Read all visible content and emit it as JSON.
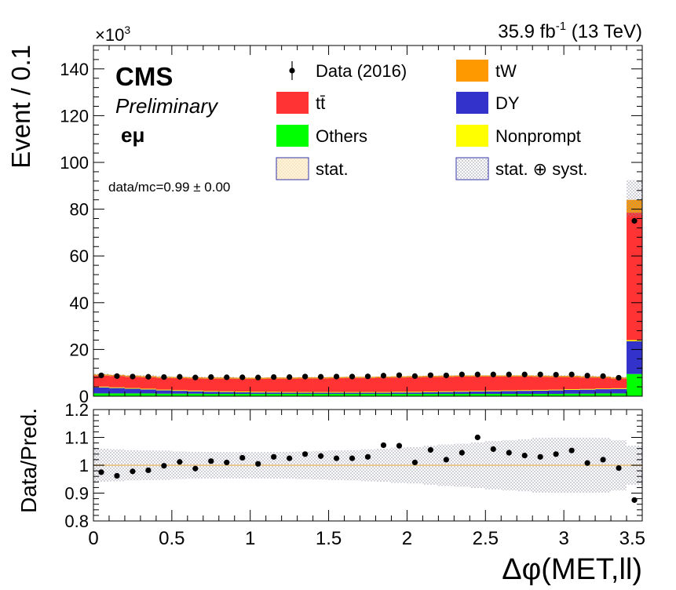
{
  "header": {
    "lumi_value": "35.9 fb",
    "lumi_exp": "-1",
    "lumi_energy": "(13 TeV)",
    "y_multiplier_base": "×10",
    "y_multiplier_exp": "3"
  },
  "labels": {
    "cms": "CMS",
    "preliminary": "Preliminary",
    "channel": "eμ",
    "ratio_text": "data/mc=0.99 ± 0.00"
  },
  "colors": {
    "ttbar": "#ff3333",
    "tW": "#ff9900",
    "DY": "#3333cc",
    "Others": "#00ff00",
    "Nonprompt": "#ffff00",
    "data": "#000000",
    "unc_band": "#9999aa"
  },
  "legend": [
    {
      "label": "Data (2016)",
      "kind": "data"
    },
    {
      "label": "tW",
      "kind": "fill",
      "color_key": "tW"
    },
    {
      "label": "tt̄",
      "kind": "fill",
      "color_key": "ttbar"
    },
    {
      "label": "DY",
      "kind": "fill",
      "color_key": "DY"
    },
    {
      "label": "Others",
      "kind": "fill",
      "color_key": "Others"
    },
    {
      "label": "Nonprompt",
      "kind": "fill",
      "color_key": "Nonprompt"
    },
    {
      "label": "stat.",
      "kind": "stat"
    },
    {
      "label": "stat. ⊕ syst.",
      "kind": "syst"
    }
  ],
  "chart_data": [
    {
      "type": "bar",
      "stacked": true,
      "ylabel": "Event / 0.1",
      "y_scale_note": "×10^3",
      "ylim": [
        0,
        150
      ],
      "xlim": [
        0,
        3.5
      ],
      "yticks": [
        0,
        20,
        40,
        60,
        80,
        100,
        120,
        140
      ],
      "bin_width": 0.1,
      "x_centers": [
        0.05,
        0.15,
        0.25,
        0.35,
        0.45,
        0.55,
        0.65,
        0.75,
        0.85,
        0.95,
        1.05,
        1.15,
        1.25,
        1.35,
        1.45,
        1.55,
        1.65,
        1.75,
        1.85,
        1.95,
        2.05,
        2.15,
        2.25,
        2.35,
        2.45,
        2.55,
        2.65,
        2.75,
        2.85,
        2.95,
        3.05,
        3.15,
        3.25,
        3.35,
        3.45
      ],
      "series": [
        {
          "name": "Others",
          "values": [
            1.2,
            1.2,
            1.2,
            1.2,
            1.1,
            1.1,
            1.1,
            1.0,
            1.0,
            1.0,
            1.0,
            1.0,
            1.0,
            1.0,
            1.0,
            1.0,
            1.0,
            1.0,
            1.0,
            1.0,
            1.0,
            1.0,
            1.0,
            1.0,
            1.0,
            1.0,
            1.0,
            1.0,
            1.0,
            1.0,
            1.1,
            1.1,
            1.2,
            1.2,
            9.5
          ]
        },
        {
          "name": "DY",
          "values": [
            2.6,
            2.3,
            2.0,
            1.7,
            1.4,
            1.2,
            1.0,
            0.9,
            0.8,
            0.7,
            0.6,
            0.6,
            0.5,
            0.5,
            0.5,
            0.5,
            0.5,
            0.5,
            0.5,
            0.6,
            0.6,
            0.7,
            0.8,
            0.9,
            1.0,
            1.1,
            1.2,
            1.3,
            1.4,
            1.5,
            1.6,
            1.7,
            1.8,
            1.9,
            14.0
          ]
        },
        {
          "name": "Nonprompt",
          "values": [
            0.3,
            0.3,
            0.3,
            0.3,
            0.3,
            0.3,
            0.3,
            0.3,
            0.3,
            0.3,
            0.3,
            0.3,
            0.3,
            0.3,
            0.3,
            0.3,
            0.3,
            0.3,
            0.3,
            0.3,
            0.3,
            0.3,
            0.3,
            0.3,
            0.3,
            0.3,
            0.3,
            0.3,
            0.3,
            0.3,
            0.3,
            0.3,
            0.3,
            0.3,
            0.5
          ]
        },
        {
          "name": "tt̄",
          "values": [
            4.7,
            4.8,
            4.8,
            4.9,
            5.0,
            5.1,
            5.2,
            5.3,
            5.4,
            5.4,
            5.5,
            5.6,
            5.7,
            5.8,
            5.8,
            5.9,
            6.0,
            6.0,
            6.1,
            6.1,
            6.2,
            6.2,
            6.2,
            6.2,
            6.1,
            6.0,
            5.9,
            5.8,
            5.6,
            5.4,
            5.2,
            4.9,
            4.6,
            4.1,
            54.5
          ]
        },
        {
          "name": "tW",
          "values": [
            0.5,
            0.5,
            0.5,
            0.5,
            0.5,
            0.5,
            0.5,
            0.5,
            0.5,
            0.5,
            0.5,
            0.5,
            0.5,
            0.5,
            0.5,
            0.5,
            0.5,
            0.5,
            0.5,
            0.5,
            0.5,
            0.5,
            0.5,
            0.5,
            0.5,
            0.5,
            0.5,
            0.5,
            0.5,
            0.5,
            0.5,
            0.5,
            0.5,
            0.5,
            5.5
          ]
        }
      ],
      "data_values": [
        8.9,
        8.6,
        8.4,
        8.3,
        8.2,
        8.3,
        8.0,
        8.2,
        8.1,
        8.1,
        8.0,
        8.2,
        8.2,
        8.4,
        8.3,
        8.4,
        8.4,
        8.5,
        8.8,
        9.0,
        8.6,
        9.0,
        8.9,
        9.3,
        9.3,
        9.3,
        9.3,
        9.3,
        9.3,
        9.2,
        9.3,
        8.8,
        8.6,
        7.9,
        75.0
      ],
      "total_band_top": [
        9.6,
        9.4,
        9.1,
        9.0,
        8.7,
        8.6,
        8.5,
        8.3,
        8.3,
        8.1,
        8.0,
        8.1,
        8.1,
        8.2,
        8.2,
        8.3,
        8.4,
        8.4,
        8.5,
        8.6,
        8.7,
        8.8,
        8.9,
        9.0,
        9.0,
        9.0,
        9.0,
        9.0,
        9.0,
        9.0,
        9.0,
        8.8,
        8.7,
        8.4,
        92.5
      ]
    },
    {
      "type": "scatter",
      "ylabel": "Data/Pred.",
      "xlabel": "Δφ(MET,ll)",
      "ylim": [
        0.8,
        1.2
      ],
      "xlim": [
        0,
        3.5
      ],
      "yticks": [
        0.8,
        0.9,
        1.0,
        1.1,
        1.2
      ],
      "ytick_labels": [
        "0.8",
        "0.9",
        "1",
        "1.1",
        "1.2"
      ],
      "xticks": [
        0,
        0.5,
        1,
        1.5,
        2,
        2.5,
        3,
        3.5
      ],
      "xtick_labels": [
        "0",
        "0.5",
        "1",
        "1.5",
        "2",
        "2.5",
        "3",
        "3.5"
      ],
      "x_centers": [
        0.05,
        0.15,
        0.25,
        0.35,
        0.45,
        0.55,
        0.65,
        0.75,
        0.85,
        0.95,
        1.05,
        1.15,
        1.25,
        1.35,
        1.45,
        1.55,
        1.65,
        1.75,
        1.85,
        1.95,
        2.05,
        2.15,
        2.25,
        2.35,
        2.45,
        2.55,
        2.65,
        2.75,
        2.85,
        2.95,
        3.05,
        3.15,
        3.25,
        3.35,
        3.45
      ],
      "values": [
        0.975,
        0.962,
        0.978,
        0.982,
        0.998,
        1.012,
        0.988,
        1.015,
        1.01,
        1.027,
        1.005,
        1.03,
        1.025,
        1.04,
        1.033,
        1.025,
        1.025,
        1.03,
        1.072,
        1.07,
        1.01,
        1.055,
        1.02,
        1.045,
        1.1,
        1.058,
        1.045,
        1.035,
        1.03,
        1.04,
        1.053,
        1.008,
        1.02,
        0.99,
        0.875
      ],
      "syst_band_halfwidth": [
        0.06,
        0.057,
        0.055,
        0.053,
        0.052,
        0.05,
        0.049,
        0.048,
        0.047,
        0.047,
        0.047,
        0.048,
        0.049,
        0.05,
        0.051,
        0.053,
        0.055,
        0.057,
        0.06,
        0.063,
        0.066,
        0.07,
        0.074,
        0.078,
        0.082,
        0.086,
        0.09,
        0.094,
        0.098,
        0.1,
        0.1,
        0.1,
        0.098,
        0.09,
        0.07
      ],
      "stat_band_halfwidth": 0.003
    }
  ]
}
